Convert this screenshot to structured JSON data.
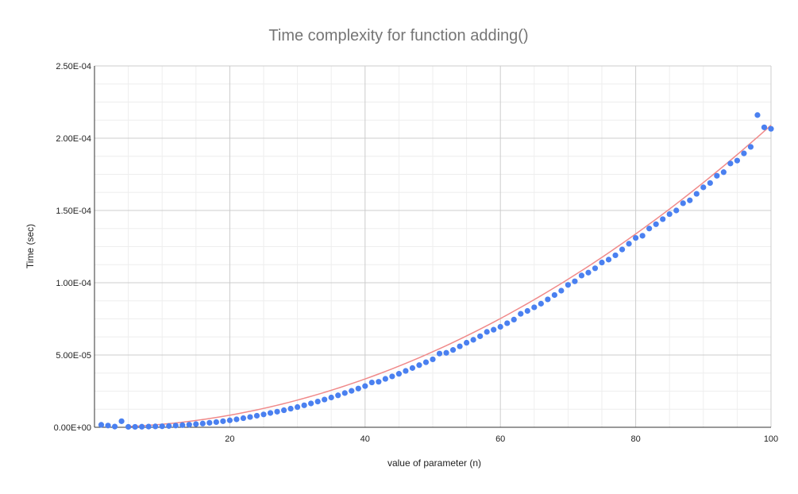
{
  "chart_data": {
    "type": "scatter",
    "title": "Time complexity for function adding()",
    "xlabel": "value of parameter (n)",
    "ylabel": "Time (sec)",
    "xlim": [
      0,
      100
    ],
    "ylim": [
      0,
      0.00025
    ],
    "x_ticks": [
      {
        "value": 20,
        "label": "20"
      },
      {
        "value": 40,
        "label": "40"
      },
      {
        "value": 60,
        "label": "60"
      },
      {
        "value": 80,
        "label": "80"
      },
      {
        "value": 100,
        "label": "100"
      }
    ],
    "y_ticks": [
      {
        "value": 0,
        "label": "0.00E+00"
      },
      {
        "value": 5e-05,
        "label": "5.00E-05"
      },
      {
        "value": 0.0001,
        "label": "1.00E-04"
      },
      {
        "value": 0.00015,
        "label": "1.50E-04"
      },
      {
        "value": 0.0002,
        "label": "2.00E-04"
      },
      {
        "value": 0.00025,
        "label": "2.50E-04"
      }
    ],
    "grid": true,
    "legend": "none",
    "series": [
      {
        "color": "#4a80f0",
        "x": [
          1,
          2,
          3,
          4,
          5,
          6,
          7,
          8,
          9,
          10,
          11,
          12,
          13,
          14,
          15,
          16,
          17,
          18,
          19,
          20,
          21,
          22,
          23,
          24,
          25,
          26,
          27,
          28,
          29,
          30,
          31,
          32,
          33,
          34,
          35,
          36,
          37,
          38,
          39,
          40,
          41,
          42,
          43,
          44,
          45,
          46,
          47,
          48,
          49,
          50,
          51,
          52,
          53,
          54,
          55,
          56,
          57,
          58,
          59,
          60,
          61,
          62,
          63,
          64,
          65,
          66,
          67,
          68,
          69,
          70,
          71,
          72,
          73,
          74,
          75,
          76,
          77,
          78,
          79,
          80,
          81,
          82,
          83,
          84,
          85,
          86,
          87,
          88,
          89,
          90,
          91,
          92,
          93,
          94,
          95,
          96,
          97,
          98,
          99,
          100
        ],
        "y": [
          1.7e-06,
          1.2e-06,
          5e-07,
          4.2e-06,
          3e-07,
          3e-07,
          4e-07,
          5e-07,
          6e-07,
          7e-07,
          9e-07,
          1.2e-06,
          1.5e-06,
          1.8e-06,
          2.2e-06,
          2.6e-06,
          3.1e-06,
          3.6e-06,
          4.2e-06,
          4.8e-06,
          5.5e-06,
          6.3e-06,
          7.1e-06,
          8e-06,
          8.9e-06,
          9.9e-06,
          1.08e-05,
          1.18e-05,
          1.29e-05,
          1.4e-05,
          1.52e-05,
          1.65e-05,
          1.78e-05,
          1.92e-05,
          2.06e-05,
          2.21e-05,
          2.37e-05,
          2.52e-05,
          2.68e-05,
          2.85e-05,
          3.1e-05,
          3.15e-05,
          3.35e-05,
          3.52e-05,
          3.7e-05,
          3.9e-05,
          4.1e-05,
          4.3e-05,
          4.5e-05,
          4.7e-05,
          5.1e-05,
          5.15e-05,
          5.35e-05,
          5.6e-05,
          5.85e-05,
          6.05e-05,
          6.3e-05,
          6.6e-05,
          6.75e-05,
          6.95e-05,
          7.2e-05,
          7.45e-05,
          7.85e-05,
          8.05e-05,
          8.3e-05,
          8.55e-05,
          8.85e-05,
          9.15e-05,
          9.45e-05,
          9.85e-05,
          0.000101,
          0.000105,
          0.000107,
          0.00011,
          0.000114,
          0.000116,
          0.000119,
          0.000123,
          0.000127,
          0.000131,
          0.0001325,
          0.0001375,
          0.0001405,
          0.000144,
          0.0001475,
          0.00015,
          0.000155,
          0.000157,
          0.0001615,
          0.000166,
          0.000169,
          0.000174,
          0.0001765,
          0.0001825,
          0.0001845,
          0.0001895,
          0.000194,
          0.000216,
          0.0002075,
          0.0002065
        ]
      }
    ],
    "trendline": {
      "color": "#f08a8a",
      "type": "polynomial",
      "x_range": [
        5,
        100
      ],
      "coefficients": [
        0,
        0,
        2.09e-08
      ]
    }
  }
}
